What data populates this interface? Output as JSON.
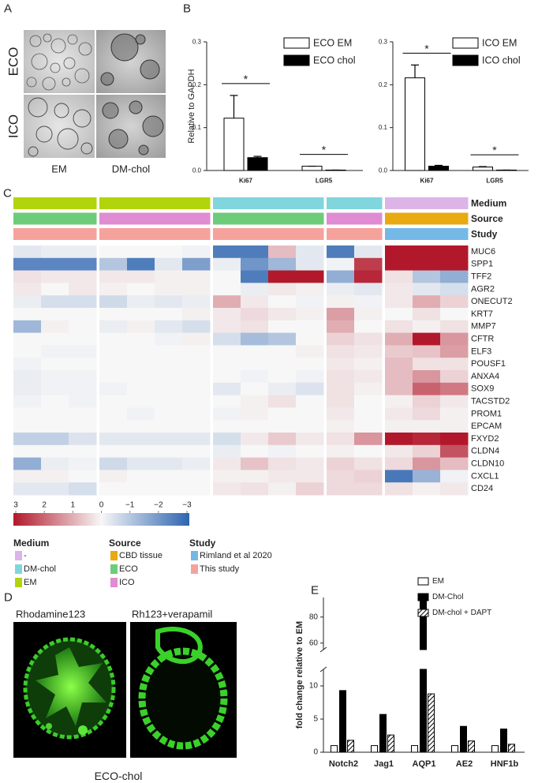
{
  "panel_labels": [
    "A",
    "B",
    "C",
    "D",
    "E"
  ],
  "panel_a": {
    "row_labels": [
      "ECO",
      "ICO"
    ],
    "col_labels": [
      "EM",
      "DM-chol"
    ]
  },
  "panel_d": {
    "image_labels": [
      "Rhodamine123",
      "Rh123+verapamil"
    ],
    "caption": "ECO-chol"
  },
  "chart_data": [
    {
      "type": "bar",
      "y_label": "Relative to GAPDH",
      "categories": [
        "Ki67",
        "LGR5"
      ],
      "series": [
        {
          "name": "ECO EM",
          "color": "#ffffff",
          "values": [
            0.122,
            0.01
          ],
          "errors": [
            0.053,
            0
          ]
        },
        {
          "name": "ECO chol",
          "color": "#000000",
          "values": [
            0.03,
            0.001
          ],
          "errors": [
            0.003,
            0
          ]
        }
      ],
      "significance": [
        "*",
        "*"
      ],
      "ylim": [
        0,
        0.3
      ],
      "yticks": [
        {
          "value": 0,
          "label": "0.0"
        },
        {
          "value": 0.1,
          "label": "0.1"
        },
        {
          "value": 0.2,
          "label": "0.2"
        },
        {
          "value": 0.3,
          "label": "0.3"
        }
      ],
      "legend": "top-right"
    },
    {
      "type": "bar",
      "categories": [
        "Ki67",
        "LGR5"
      ],
      "series": [
        {
          "name": "ICO EM",
          "color": "#ffffff",
          "values": [
            0.216,
            0.008
          ],
          "errors": [
            0.03,
            0.001
          ]
        },
        {
          "name": "ICO chol",
          "color": "#000000",
          "values": [
            0.01,
            0.001
          ],
          "errors": [
            0.002,
            0
          ]
        }
      ],
      "significance": [
        "*",
        "*"
      ],
      "ylim": [
        0,
        0.3
      ],
      "yticks": [
        {
          "value": 0,
          "label": "0.0"
        },
        {
          "value": 0.1,
          "label": "0.1"
        },
        {
          "value": 0.2,
          "label": "0.2"
        },
        {
          "value": 0.3,
          "label": "0.3"
        }
      ],
      "legend": "top-right"
    },
    {
      "type": "heatmap",
      "rows": [
        "MUC6",
        "SPP1",
        "TFF2",
        "AGR2",
        "ONECUT2",
        "KRT7",
        "MMP7",
        "CFTR",
        "ELF3",
        "POUSF1",
        "ANXA4",
        "SOX9",
        "TACSTD2",
        "PROM1",
        "EPCAM",
        "FXYD2",
        "CLDN4",
        "CLDN10",
        "CXCL1",
        "CD24"
      ],
      "values": [
        [
          -0.3,
          -0.2,
          -0.2,
          0,
          0,
          0,
          -0.1,
          -2.5,
          -2.5,
          0.8,
          -0.3,
          -2.5,
          -0.3,
          3,
          3,
          3
        ],
        [
          -2.3,
          -2.3,
          -2.3,
          -1,
          -2.5,
          -0.3,
          -1.8,
          -0.2,
          -2,
          -1.3,
          -0.3,
          -0.1,
          2.5,
          3,
          3,
          3
        ],
        [
          0.3,
          0.2,
          0.2,
          0.2,
          0.2,
          0.1,
          0.1,
          0,
          -2.5,
          3,
          3,
          -1.5,
          2.8,
          0.3,
          -1,
          -1.5
        ],
        [
          0.2,
          0,
          0.2,
          0.1,
          0,
          0.1,
          0.1,
          0,
          -0.2,
          0.2,
          0.1,
          -0.2,
          -0.3,
          0.2,
          -0.3,
          -0.5
        ],
        [
          -0.2,
          -0.5,
          -0.5,
          -0.6,
          -0.2,
          -0.3,
          -0.2,
          1,
          0.2,
          0,
          -0.1,
          0.1,
          -0.1,
          0.2,
          1,
          0.5
        ],
        [
          0,
          0,
          0,
          0,
          0,
          0,
          0.1,
          0.2,
          0.4,
          0.2,
          0.1,
          1.2,
          0.1,
          0,
          0.3,
          0
        ],
        [
          -1.3,
          0.1,
          0,
          -0.2,
          0.1,
          -0.3,
          -0.5,
          0.2,
          0.3,
          0,
          0,
          1,
          0,
          0.3,
          0.1,
          0.3
        ],
        [
          0,
          0,
          0,
          0,
          0,
          -0.1,
          0.1,
          -0.5,
          -1.2,
          -1,
          0,
          0.5,
          0.3,
          1,
          3,
          1.3
        ],
        [
          0,
          -0.1,
          -0.1,
          0,
          0,
          0,
          0,
          0,
          0,
          0,
          0.1,
          0.3,
          0.2,
          0.6,
          0.7,
          1.2
        ],
        [
          -0.1,
          0,
          0,
          0,
          0,
          0,
          0,
          0,
          0,
          0,
          0,
          0.2,
          0.1,
          0.8,
          0.3,
          0.3
        ],
        [
          -0.2,
          -0.1,
          -0.1,
          0,
          0,
          0,
          0,
          0,
          -0.1,
          0,
          -0.1,
          0.3,
          0.2,
          0.8,
          1.3,
          0.5
        ],
        [
          -0.2,
          -0.1,
          -0.1,
          -0.1,
          0,
          0,
          0,
          -0.3,
          0,
          -0.2,
          -0.4,
          0.3,
          0.1,
          0.8,
          2,
          1.7
        ],
        [
          -0.1,
          0,
          -0.1,
          0,
          0,
          0,
          0,
          0,
          0.1,
          0.3,
          0,
          0.3,
          0,
          0.1,
          0.5,
          0.2
        ],
        [
          0,
          0,
          0,
          0,
          -0.1,
          0,
          0,
          -0.1,
          0.1,
          0,
          0,
          0.2,
          0,
          0.2,
          0.4,
          0.1
        ],
        [
          0,
          0,
          0,
          0,
          0,
          0,
          0,
          0,
          0,
          0,
          0,
          0.1,
          0,
          0.1,
          0.1,
          0.1
        ],
        [
          -0.8,
          -0.8,
          -0.4,
          -0.3,
          -0.3,
          -0.3,
          -0.3,
          -0.5,
          0.2,
          0.6,
          0.2,
          0.3,
          1.3,
          3,
          2.8,
          3
        ],
        [
          0,
          0,
          0,
          0,
          0,
          0,
          0,
          -0.2,
          0,
          -0.1,
          0,
          0.1,
          0,
          0.2,
          0.5,
          2.2
        ],
        [
          -1.5,
          -0.2,
          -0.1,
          -0.6,
          -0.3,
          -0.3,
          -0.2,
          0.2,
          0.7,
          0.3,
          0.2,
          0.5,
          0.3,
          0.4,
          1.3,
          0.8
        ],
        [
          0.1,
          0.1,
          0,
          0.1,
          0,
          0,
          0,
          0.1,
          0.1,
          0.2,
          0.2,
          0.4,
          0.5,
          -2.6,
          -1.4,
          -0.1
        ],
        [
          -0.3,
          -0.3,
          -0.5,
          0,
          0,
          0,
          0,
          0.2,
          0.3,
          0.1,
          0.5,
          0.4,
          0.4,
          0.3,
          0.1,
          0.2
        ]
      ],
      "zlim": [
        3,
        -3
      ],
      "colors": [
        "#b2182b",
        "#f7f7f7",
        "#2d64b0"
      ],
      "colorbar_ticks": [
        3,
        2,
        1,
        0,
        {
          "value": -1,
          "label": "−1"
        },
        {
          "value": -2,
          "label": "−2"
        },
        {
          "value": -3,
          "label": "−3"
        }
      ],
      "annotations": [
        {
          "name": "Medium",
          "values": [
            "EM",
            "EM",
            "EM",
            "EM",
            "EM",
            "EM",
            "EM",
            "DM-chol",
            "DM-chol",
            "DM-chol",
            "DM-chol",
            "DM-chol",
            "DM-chol",
            "-",
            "-",
            "-"
          ]
        },
        {
          "name": "Source",
          "values": [
            "ECO",
            "ECO",
            "ECO",
            "ICO",
            "ICO",
            "ICO",
            "ICO",
            "ECO",
            "ECO",
            "ECO",
            "ECO",
            "ICO",
            "ICO",
            "CBD tissue",
            "CBD tissue",
            "CBD tissue"
          ]
        },
        {
          "name": "Study",
          "values": [
            "This study",
            "This study",
            "This study",
            "This study",
            "This study",
            "This study",
            "This study",
            "This study",
            "This study",
            "This study",
            "This study",
            "This study",
            "This study",
            "Rimland et al 2020",
            "Rimland et al 2020",
            "Rimland et al 2020"
          ]
        }
      ],
      "legend": [
        {
          "title": "Medium",
          "items": [
            {
              "name": "-",
              "color": "#dcb4e8"
            },
            {
              "name": "DM-chol",
              "color": "#80d6dc"
            },
            {
              "name": "EM",
              "color": "#b2d40a"
            }
          ]
        },
        {
          "title": "Source",
          "items": [
            {
              "name": "CBD tissue",
              "color": "#e8aa10"
            },
            {
              "name": "ECO",
              "color": "#6dcc7a"
            },
            {
              "name": "ICO",
              "color": "#df8cd2"
            }
          ]
        },
        {
          "title": "Study",
          "items": [
            {
              "name": "Rimland et al 2020",
              "color": "#74b9e6"
            },
            {
              "name": "This study",
              "color": "#f6a29c"
            }
          ]
        }
      ]
    },
    {
      "type": "bar",
      "y_label": "fold change relative to EM",
      "categories": [
        "Notch2",
        "Jag1",
        "AQP1",
        "AE2",
        "HNF1b"
      ],
      "series": [
        {
          "name": "EM",
          "color": "#ffffff",
          "values": [
            1,
            1,
            1,
            1,
            1
          ]
        },
        {
          "name": "DM-Chol",
          "color": "#000000",
          "values": [
            9.3,
            5.7,
            92,
            3.9,
            3.5
          ]
        },
        {
          "name": "DM-chol + DAPT",
          "color": "#000000",
          "pattern": "hatch",
          "values": [
            1.8,
            2.6,
            8.8,
            1.7,
            1.2
          ]
        }
      ],
      "ylim": [
        0,
        95
      ],
      "axis_break": [
        12.5,
        55
      ],
      "yticks": [
        0,
        5,
        10,
        60,
        80
      ],
      "legend": "top-right"
    }
  ]
}
